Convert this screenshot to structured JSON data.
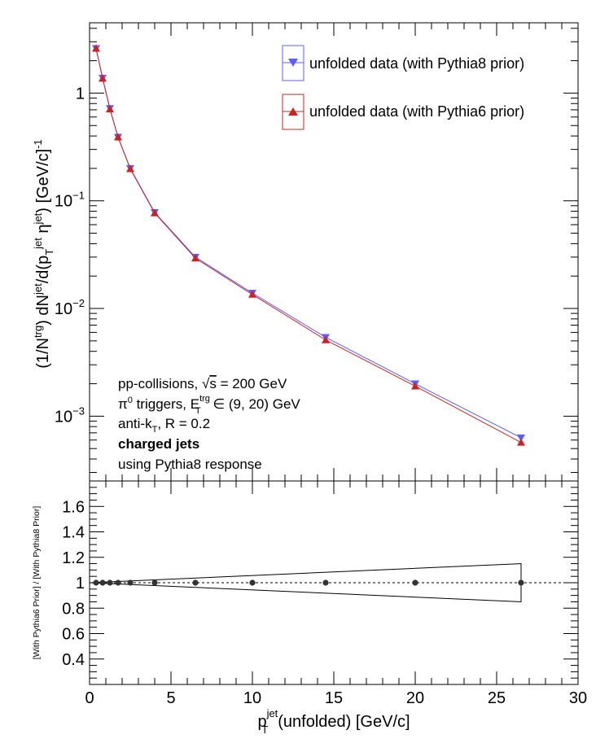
{
  "chart_data": [
    {
      "type": "scatter",
      "y_scale": "log",
      "xlim": [
        0,
        30
      ],
      "ylim": [
        0.00025,
        4.5
      ],
      "ylabel": {
        "p1": "(1/N",
        "s1": "trg",
        "p2": ") dN",
        "s2": "jet",
        "p3": "/d(p",
        "sub": "T",
        "s3": "jet",
        "p4": " η",
        "s4": "jet",
        "p5": ") [GeV/c]",
        "s5": "-1"
      },
      "y_ticks": [
        {
          "value": 1,
          "base": "1",
          "exp": ""
        },
        {
          "value": 0.1,
          "base": "10",
          "exp": "−1"
        },
        {
          "value": 0.01,
          "base": "10",
          "exp": "−2"
        },
        {
          "value": 0.001,
          "base": "10",
          "exp": "−3"
        }
      ],
      "x": [
        0.4,
        0.8,
        1.25,
        1.75,
        2.5,
        4.0,
        6.5,
        10.0,
        14.5,
        20.0,
        26.5
      ],
      "series": [
        {
          "name": "unfolded data (with Pythia8 prior)",
          "color": "#5c5cff",
          "marker": "triangle-down",
          "values": [
            2.6,
            1.38,
            0.72,
            0.39,
            0.2,
            0.078,
            0.03,
            0.0139,
            0.0054,
            0.002,
            0.00063
          ]
        },
        {
          "name": "unfolded data (with Pythia6 prior)",
          "color": "#cc2222",
          "marker": "triangle-up",
          "values": [
            2.6,
            1.37,
            0.71,
            0.39,
            0.198,
            0.077,
            0.0293,
            0.0135,
            0.0051,
            0.0019,
            0.00057
          ]
        }
      ],
      "legend_position": "top-right",
      "annotations": {
        "line1_a": "pp-collisions, ",
        "line1_sqrt": "√",
        "line1_s": "s",
        "line1_b": " = 200 GeV",
        "line2_pi": "π",
        "line2_sup0": "0",
        "line2_a": " triggers, E",
        "line2_sup": "trg",
        "line2_sub": "T",
        "line2_b": " ∈ (9, 20) GeV",
        "line3_a": "anti-k",
        "line3_sub": "T",
        "line3_b": ", R = 0.2",
        "line4": "charged jets",
        "line5": "using Pythia8 response"
      }
    },
    {
      "type": "scatter",
      "xlim": [
        0,
        30
      ],
      "ylim": [
        0.2,
        1.8
      ],
      "x_ticks": [
        "0",
        "5",
        "10",
        "15",
        "20",
        "25",
        "30"
      ],
      "y_ticks": [
        "0.4",
        "0.6",
        "0.8",
        "1",
        "1.2",
        "1.4",
        "1.6"
      ],
      "ylabel": "[With Pythia6 Prior] / [With Pythia8 Prior]",
      "xlabel": {
        "p1": "p",
        "sub": "T",
        "sup": "jet",
        "p2": "(unfolded) [GeV/c]"
      },
      "reference_line": 1,
      "x": [
        0.4,
        0.8,
        1.25,
        1.75,
        2.5,
        4.0,
        6.5,
        10.0,
        14.5,
        20.0,
        26.5
      ],
      "series": [
        {
          "name": "",
          "color": "#333333",
          "values": [
            1,
            1,
            1,
            1,
            1,
            1,
            1,
            1,
            1,
            1,
            1
          ]
        }
      ],
      "band": {
        "x": [
          0,
          26.5
        ],
        "upper": [
          1.0,
          1.15
        ],
        "lower": [
          1.0,
          0.85
        ]
      }
    }
  ]
}
